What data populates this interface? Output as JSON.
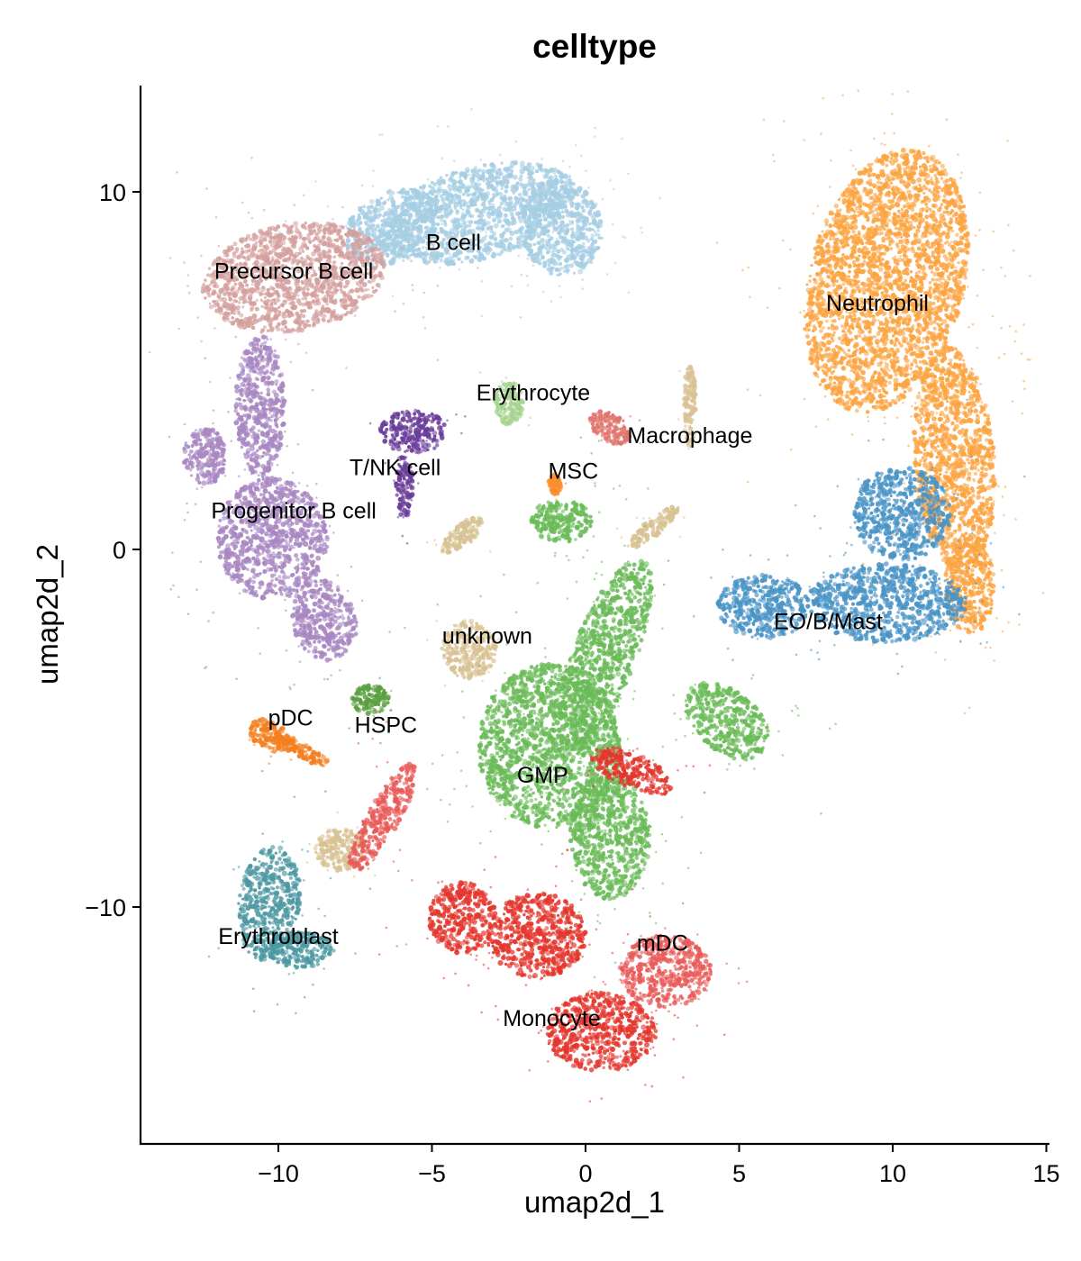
{
  "chart_data": {
    "type": "scatter",
    "title": "celltype",
    "xlabel": "umap2d_1",
    "ylabel": "umap2d_2",
    "xlim": [
      -14.5,
      15.2
    ],
    "ylim": [
      -16.5,
      13
    ],
    "xticks": [
      {
        "value": -10,
        "label": "−10"
      },
      {
        "value": -5,
        "label": "−5"
      },
      {
        "value": 0,
        "label": "0"
      },
      {
        "value": 5,
        "label": "5"
      },
      {
        "value": 10,
        "label": "10"
      },
      {
        "value": 15,
        "label": "15"
      }
    ],
    "yticks": [
      {
        "value": 10,
        "label": "10"
      },
      {
        "value": 0,
        "label": "0"
      },
      {
        "value": -10,
        "label": "−10"
      }
    ],
    "grid": false,
    "legend": "on data",
    "series": [
      {
        "name": "B cell",
        "color": "#a6cee3",
        "label_pos": [
          -4.3,
          8.6
        ],
        "regions": [
          {
            "center": [
              -3.5,
              9.4
            ],
            "radius": [
              3.2,
              1.3
            ],
            "rotation": 12
          },
          {
            "center": [
              -0.8,
              9.0
            ],
            "radius": [
              1.4,
              1.3
            ],
            "rotation": -45
          },
          {
            "center": [
              -6.3,
              9.0
            ],
            "radius": [
              1.6,
              1.0
            ],
            "rotation": 20
          }
        ]
      },
      {
        "name": "Precursor B cell",
        "color": "#d4a09e",
        "label_pos": [
          -9.5,
          7.8
        ],
        "regions": [
          {
            "center": [
              -9.5,
              7.6
            ],
            "radius": [
              3.0,
              1.5
            ],
            "rotation": 8
          }
        ]
      },
      {
        "name": "Progenitor B cell",
        "color": "#a887c2",
        "label_pos": [
          -9.5,
          1.1
        ],
        "regions": [
          {
            "center": [
              -10.2,
              0.3
            ],
            "radius": [
              1.8,
              1.7
            ],
            "rotation": 0
          },
          {
            "center": [
              -10.6,
              4.0
            ],
            "radius": [
              0.8,
              2.0
            ],
            "rotation": 0
          },
          {
            "center": [
              -12.4,
              2.6
            ],
            "radius": [
              0.7,
              0.8
            ],
            "rotation": 0
          },
          {
            "center": [
              -8.5,
              -2.0
            ],
            "radius": [
              1.0,
              1.2
            ],
            "rotation": 30
          }
        ]
      },
      {
        "name": "T/NK cell",
        "color": "#6a3d9a",
        "label_pos": [
          -6.2,
          2.3
        ],
        "regions": [
          {
            "center": [
              -5.6,
              3.3
            ],
            "radius": [
              1.1,
              0.6
            ],
            "rotation": 0
          },
          {
            "center": [
              -5.9,
              1.8
            ],
            "radius": [
              0.3,
              0.9
            ],
            "rotation": 0
          }
        ]
      },
      {
        "name": "Erythrocyte",
        "color": "#a5d38f",
        "label_pos": [
          -1.7,
          4.4
        ],
        "regions": [
          {
            "center": [
              -2.5,
              4.1
            ],
            "radius": [
              0.5,
              0.6
            ],
            "rotation": 0
          }
        ]
      },
      {
        "name": "Macrophage",
        "color": "#e0756d",
        "label_pos": [
          3.4,
          3.2
        ],
        "regions": [
          {
            "center": [
              0.8,
              3.4
            ],
            "radius": [
              0.7,
              0.4
            ],
            "rotation": -25
          }
        ]
      },
      {
        "name": "MSC",
        "color": "#fb8f2d",
        "label_pos": [
          -0.4,
          2.2
        ],
        "regions": [
          {
            "center": [
              -1.0,
              1.8
            ],
            "radius": [
              0.2,
              0.3
            ],
            "rotation": 0
          }
        ]
      },
      {
        "name": "Neutrophil",
        "color": "#fca441",
        "label_pos": [
          9.5,
          6.9
        ],
        "regions": [
          {
            "center": [
              9.8,
              7.5
            ],
            "radius": [
              2.5,
              3.8
            ],
            "rotation": -20
          },
          {
            "center": [
              12.0,
              2.5
            ],
            "radius": [
              1.3,
              3.2
            ],
            "rotation": 5
          },
          {
            "center": [
              12.5,
              -1.0
            ],
            "radius": [
              0.8,
              1.4
            ],
            "rotation": 0
          }
        ]
      },
      {
        "name": "EO/B/Mast",
        "color": "#4a94c6",
        "label_pos": [
          7.9,
          -2.0
        ],
        "regions": [
          {
            "center": [
              5.8,
              -1.6
            ],
            "radius": [
              1.5,
              0.9
            ],
            "rotation": 0
          },
          {
            "center": [
              9.8,
              -1.5
            ],
            "radius": [
              2.6,
              1.1
            ],
            "rotation": 0
          },
          {
            "center": [
              10.3,
              1.0
            ],
            "radius": [
              1.6,
              1.3
            ],
            "rotation": 0
          }
        ]
      },
      {
        "name": "unknown",
        "color": "#d8c293",
        "label_pos": [
          -3.2,
          -2.4
        ],
        "regions": [
          {
            "center": [
              -3.8,
              -2.8
            ],
            "radius": [
              0.9,
              0.8
            ],
            "rotation": 0
          },
          {
            "center": [
              -8.0,
              -8.4
            ],
            "radius": [
              0.8,
              0.6
            ],
            "rotation": 0
          },
          {
            "center": [
              -4.0,
              0.4
            ],
            "radius": [
              0.8,
              0.3
            ],
            "rotation": 35
          },
          {
            "center": [
              2.2,
              0.6
            ],
            "radius": [
              1.0,
              0.25
            ],
            "rotation": 35
          },
          {
            "center": [
              3.4,
              4.0
            ],
            "radius": [
              0.2,
              1.2
            ],
            "rotation": 0
          }
        ]
      },
      {
        "name": "HSPC",
        "color": "#5a9e40",
        "label_pos": [
          -6.5,
          -4.9
        ],
        "regions": [
          {
            "center": [
              -7.0,
              -4.2
            ],
            "radius": [
              0.6,
              0.4
            ],
            "rotation": 0
          }
        ]
      },
      {
        "name": "pDC",
        "color": "#f47f20",
        "label_pos": [
          -9.6,
          -4.7
        ],
        "regions": [
          {
            "center": [
              -10.3,
              -5.2
            ],
            "radius": [
              0.7,
              0.4
            ],
            "rotation": -20
          },
          {
            "center": [
              -9.3,
              -5.6
            ],
            "radius": [
              1.1,
              0.2
            ],
            "rotation": -25
          }
        ]
      },
      {
        "name": "GMP",
        "color": "#6abb58",
        "label_pos": [
          -1.4,
          -6.3
        ],
        "regions": [
          {
            "center": [
              -1.2,
              -5.5
            ],
            "radius": [
              2.3,
              2.3
            ],
            "rotation": 0
          },
          {
            "center": [
              0.6,
              -3.0
            ],
            "radius": [
              1.0,
              3.0
            ],
            "rotation": -25
          },
          {
            "center": [
              0.8,
              -8.0
            ],
            "radius": [
              1.3,
              1.8
            ],
            "rotation": 0
          },
          {
            "center": [
              4.6,
              -4.8
            ],
            "radius": [
              1.5,
              0.9
            ],
            "rotation": -30
          },
          {
            "center": [
              -0.8,
              0.8
            ],
            "radius": [
              1.0,
              0.6
            ],
            "rotation": 0
          }
        ]
      },
      {
        "name": "Erythroblast",
        "color": "#4c98a2",
        "label_pos": [
          -10.0,
          -10.8
        ],
        "regions": [
          {
            "center": [
              -10.3,
              -9.9
            ],
            "radius": [
              1.0,
              1.6
            ],
            "rotation": -10
          },
          {
            "center": [
              -9.3,
              -11.2
            ],
            "radius": [
              1.1,
              0.5
            ],
            "rotation": 0
          }
        ]
      },
      {
        "name": "mDC",
        "color": "#e85a58",
        "label_pos": [
          2.5,
          -11.0
        ],
        "regions": [
          {
            "center": [
              2.6,
              -11.8
            ],
            "radius": [
              1.5,
              1.0
            ],
            "rotation": 0
          },
          {
            "center": [
              -6.6,
              -7.5
            ],
            "radius": [
              0.5,
              1.8
            ],
            "rotation": -35
          }
        ]
      },
      {
        "name": "Monocyte",
        "color": "#e4362d",
        "label_pos": [
          -1.1,
          -13.1
        ],
        "regions": [
          {
            "center": [
              0.5,
              -13.5
            ],
            "radius": [
              1.8,
              1.1
            ],
            "rotation": 0
          },
          {
            "center": [
              -4.0,
              -10.3
            ],
            "radius": [
              1.1,
              1.0
            ],
            "rotation": 0
          },
          {
            "center": [
              -1.6,
              -10.8
            ],
            "radius": [
              1.6,
              1.2
            ],
            "rotation": 0
          },
          {
            "center": [
              1.5,
              -6.2
            ],
            "radius": [
              1.4,
              0.5
            ],
            "rotation": -20
          }
        ]
      }
    ]
  }
}
